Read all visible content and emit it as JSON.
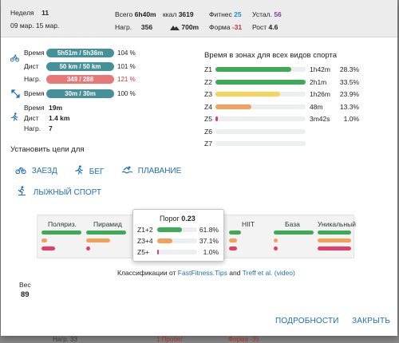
{
  "header": {
    "week_label": "Неделя",
    "week_number": "11",
    "date_range": "09 мар. 15 мар.",
    "total_label": "Всего",
    "total_value": "6h40m",
    "kcal_label": "ккал",
    "kcal_value": "3619",
    "fitness_label": "Фитнес",
    "fitness_value": "25",
    "fatigue_label": "Устал.",
    "fatigue_value": "56",
    "load_label": "Нагр.",
    "load_value": "356",
    "elevation_value": "700m",
    "form_label": "Форма",
    "form_value": "-31",
    "growth_label": "Рост",
    "growth_value": "4.6"
  },
  "goals_summary": {
    "group1": {
      "time_label": "Время",
      "time_value": "5h51m / 5h36m",
      "time_pct": "104 %",
      "dist_label": "Дист",
      "dist_value": "50 km / 50 km",
      "dist_pct": "101 %",
      "load_label": "Нагр.",
      "load_value": "349 / 288",
      "load_pct": "121 %"
    },
    "group2": {
      "time_label": "Время",
      "time_value": "30m / 30m",
      "time_pct": "100 %"
    },
    "run": {
      "time_label": "Время",
      "time_value": "19m",
      "dist_label": "Дист",
      "dist_value": "1.4 km",
      "load_label": "Нагр.",
      "load_value": "7"
    }
  },
  "zones": {
    "title": "Время в зонах для всех видов спорта",
    "items": [
      {
        "label": "Z1",
        "time": "1h42m",
        "pct": "28.3%",
        "fill": 0.843,
        "color": "#3daa55"
      },
      {
        "label": "Z2",
        "time": "2h1m",
        "pct": "33.5%",
        "fill": 1.0,
        "color": "#3daa55"
      },
      {
        "label": "Z3",
        "time": "1h26m",
        "pct": "23.9%",
        "fill": 0.713,
        "color": "#f7d35b"
      },
      {
        "label": "Z4",
        "time": "48m",
        "pct": "13.3%",
        "fill": 0.397,
        "color": "#f2a05a"
      },
      {
        "label": "Z5",
        "time": "3m42s",
        "pct": "1.0%",
        "fill": 0.03,
        "color": "#e23d6c"
      },
      {
        "label": "Z6",
        "time": "",
        "pct": "",
        "fill": 0,
        "color": "#e23d6c"
      },
      {
        "label": "Z7",
        "time": "",
        "pct": "",
        "fill": 0,
        "color": "#e23d6c"
      }
    ]
  },
  "set_goals": {
    "heading": "Установить цели для",
    "ride": "ЗАЕЗД",
    "run": "БЕГ",
    "swim": "ПЛАВАНИЕ",
    "ski": "ЛЫЖНЫЙ СПОРТ"
  },
  "classification": {
    "labels": [
      "Поляриз.",
      "Пирамид",
      "HIIT",
      "База",
      "Уникальный"
    ],
    "credit_prefix": "Классификации от",
    "credit_link1": "FastFitness.Tips",
    "credit_and": "and",
    "credit_link2": "Treff et al.",
    "credit_link3": "(video)"
  },
  "popup": {
    "title_label": "Порог",
    "title_value": "0.23",
    "rows": [
      {
        "label": "Z1+2",
        "pct": "61.8%",
        "fill": 0.618,
        "color": "#3daa55"
      },
      {
        "label": "Z3+4",
        "pct": "37.1%",
        "fill": 0.371,
        "color": "#f2a05a"
      },
      {
        "label": "Z5+",
        "pct": "1.0%",
        "fill": 0.01,
        "color": "#e23d6c"
      }
    ]
  },
  "weight": {
    "label": "Вес",
    "value": "89"
  },
  "actions": {
    "details": "ПОДРОБНОСТИ",
    "close": "ЗАКРЫТЬ"
  },
  "colors": {
    "teal": "#45919a",
    "red": "#e67878",
    "green": "#3daa55",
    "orange": "#f2a05a",
    "pink": "#e23d6c",
    "link": "#1e6fb5"
  },
  "background_fragments": {
    "left": "Нагр. 33",
    "mid": "1 Пробег",
    "right": "Форма -35"
  }
}
